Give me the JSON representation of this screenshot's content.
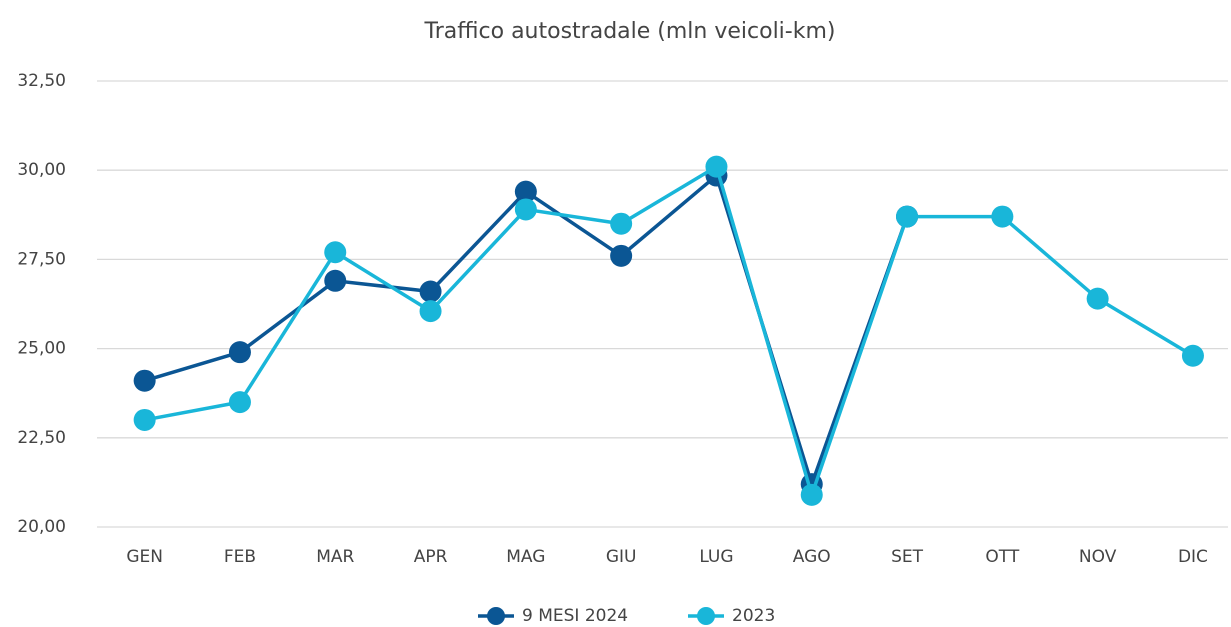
{
  "chart_data": {
    "type": "line",
    "title": "Traffico autostradale (mln veicoli-km)",
    "categories": [
      "GEN",
      "FEB",
      "MAR",
      "APR",
      "MAG",
      "GIU",
      "LUG",
      "AGO",
      "SET",
      "OTT",
      "NOV",
      "DIC"
    ],
    "series": [
      {
        "name": "9 MESI 2024",
        "color": "#0b5694",
        "values": [
          24.1,
          24.9,
          26.9,
          26.6,
          29.4,
          27.6,
          29.85,
          21.2,
          28.7,
          null,
          null,
          null
        ]
      },
      {
        "name": "2023",
        "color": "#19b6d9",
        "values": [
          23.0,
          23.5,
          27.7,
          26.05,
          28.9,
          28.5,
          30.1,
          20.9,
          28.7,
          28.7,
          26.4,
          24.8
        ]
      }
    ],
    "ylim": [
      20,
      32.5
    ],
    "yticks": [
      {
        "value": 20,
        "label": "20,00"
      },
      {
        "value": 22.5,
        "label": "22,50"
      },
      {
        "value": 25,
        "label": "25,00"
      },
      {
        "value": 27.5,
        "label": "27,50"
      },
      {
        "value": 30,
        "label": "30,00"
      },
      {
        "value": 32.5,
        "label": "32,50"
      }
    ],
    "grid": true,
    "legend": "bottom"
  }
}
